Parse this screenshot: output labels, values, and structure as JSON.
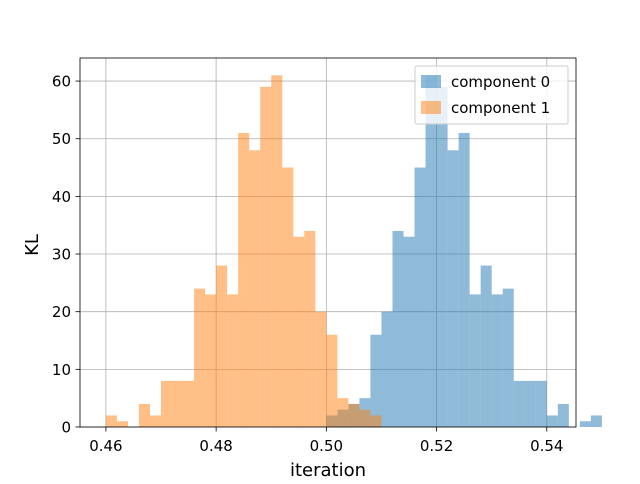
{
  "colors": {
    "series0": "#1f77b4",
    "series1": "#ff7f0e",
    "grid": "#b0b0b0",
    "axis": "#000000"
  },
  "chart_data": {
    "type": "histogram",
    "title": "",
    "xlabel": "iteration",
    "ylabel": "KL",
    "xlim": [
      0.4553,
      0.5453
    ],
    "ylim": [
      0,
      64
    ],
    "xticks": [
      0.46,
      0.48,
      0.5,
      0.52,
      0.54
    ],
    "xtick_labels": [
      "0.46",
      "0.48",
      "0.50",
      "0.52",
      "0.54"
    ],
    "yticks": [
      0,
      10,
      20,
      30,
      40,
      50,
      60
    ],
    "ytick_labels": [
      "0",
      "10",
      "20",
      "30",
      "40",
      "50",
      "60"
    ],
    "grid": true,
    "legend": "top-right",
    "bar_alpha": 0.5,
    "series": [
      {
        "name": "component 0",
        "color": "#1f77b4",
        "bin_start": 0.46,
        "bin_width": 0.002,
        "counts": [
          0,
          0,
          0,
          0,
          0,
          0,
          0,
          0,
          0,
          0,
          0,
          0,
          0,
          0,
          0,
          0,
          0,
          0,
          0,
          0,
          2,
          3,
          4,
          5,
          16,
          20,
          34,
          33,
          45,
          61,
          59,
          48,
          51,
          23,
          28,
          23,
          24,
          8,
          8,
          8,
          2,
          4,
          0,
          1,
          2
        ]
      },
      {
        "name": "component 1",
        "color": "#ff7f0e",
        "bin_start": 0.46,
        "bin_width": 0.002,
        "counts": [
          2,
          1,
          0,
          4,
          2,
          8,
          8,
          8,
          24,
          23,
          28,
          23,
          51,
          48,
          59,
          61,
          45,
          33,
          34,
          20,
          16,
          5,
          4,
          3,
          2,
          0,
          0,
          0,
          0,
          0,
          0,
          0,
          0,
          0,
          0,
          0,
          0,
          0,
          0,
          0,
          0,
          0,
          0,
          0,
          0
        ]
      }
    ]
  }
}
